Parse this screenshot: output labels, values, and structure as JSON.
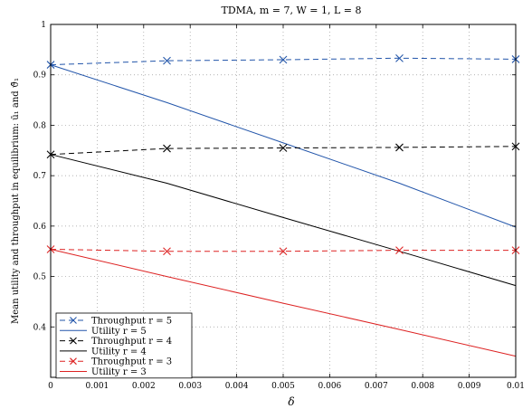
{
  "chart_data": {
    "type": "line",
    "title": "TDMA, m = 7, W = 1, L = 8",
    "xlabel": "δ",
    "ylabel": "Mean utility and throughput in equilibrium: ū₁ and ϑ̄₁",
    "xlim": [
      0,
      0.01
    ],
    "ylim": [
      0.3,
      1.0
    ],
    "xticks": [
      "0",
      "0.001",
      "0.002",
      "0.003",
      "0.004",
      "0.005",
      "0.006",
      "0.007",
      "0.008",
      "0.009",
      "0.01"
    ],
    "yticks": [
      "0.4",
      "0.5",
      "0.6",
      "0.7",
      "0.8",
      "0.9",
      "1"
    ],
    "grid": true,
    "legend_position": "bottom-left",
    "series": [
      {
        "name": "Throughput r = 5",
        "color": "#2255aa",
        "style": "dashed",
        "marker": "x",
        "x": [
          0,
          0.0025,
          0.005,
          0.0075,
          0.01
        ],
        "y": [
          0.92,
          0.928,
          0.93,
          0.933,
          0.931
        ]
      },
      {
        "name": "Utility r = 5",
        "color": "#2255aa",
        "style": "solid",
        "marker": "none",
        "x": [
          0,
          0.0025,
          0.005,
          0.0075,
          0.01
        ],
        "y": [
          0.92,
          0.845,
          0.765,
          0.685,
          0.598
        ]
      },
      {
        "name": "Throughput r = 4",
        "color": "#000000",
        "style": "dashed",
        "marker": "x",
        "x": [
          0,
          0.0025,
          0.005,
          0.0075,
          0.01
        ],
        "y": [
          0.742,
          0.754,
          0.755,
          0.756,
          0.758
        ]
      },
      {
        "name": "Utility r = 4",
        "color": "#000000",
        "style": "solid",
        "marker": "none",
        "x": [
          0,
          0.0025,
          0.005,
          0.0075,
          0.01
        ],
        "y": [
          0.742,
          0.685,
          0.617,
          0.55,
          0.482
        ]
      },
      {
        "name": "Throughput r = 3",
        "color": "#dd2222",
        "style": "dashed",
        "marker": "x",
        "x": [
          0,
          0.0025,
          0.005,
          0.0075,
          0.01
        ],
        "y": [
          0.554,
          0.55,
          0.55,
          0.552,
          0.552
        ]
      },
      {
        "name": "Utility r = 3",
        "color": "#dd2222",
        "style": "solid",
        "marker": "none",
        "x": [
          0,
          0.0025,
          0.005,
          0.0075,
          0.01
        ],
        "y": [
          0.554,
          0.5,
          0.447,
          0.395,
          0.342
        ]
      }
    ]
  }
}
